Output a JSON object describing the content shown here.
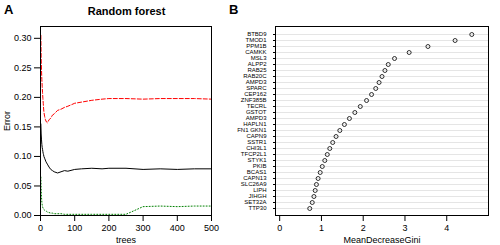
{
  "chart_data": [
    {
      "type": "line",
      "annotation": "A",
      "title": "Random forest",
      "xlabel": "trees",
      "ylabel": "Error",
      "x": [
        1,
        2,
        3,
        4,
        5,
        6,
        7,
        8,
        9,
        10,
        12,
        14,
        16,
        18,
        20,
        25,
        30,
        35,
        40,
        50,
        60,
        70,
        80,
        100,
        120,
        150,
        180,
        200,
        250,
        300,
        350,
        400,
        450,
        500
      ],
      "series": [
        {
          "color": "red",
          "line_style": "dashed",
          "values": [
            0.305,
            0.265,
            0.245,
            0.23,
            0.218,
            0.208,
            0.198,
            0.19,
            0.182,
            0.175,
            0.168,
            0.163,
            0.16,
            0.158,
            0.157,
            0.162,
            0.165,
            0.17,
            0.172,
            0.178,
            0.18,
            0.183,
            0.185,
            0.19,
            0.192,
            0.195,
            0.197,
            0.198,
            0.198,
            0.197,
            0.198,
            0.198,
            0.198,
            0.197
          ]
        },
        {
          "color": "black",
          "line_style": "solid",
          "values": [
            0.155,
            0.138,
            0.128,
            0.12,
            0.115,
            0.112,
            0.108,
            0.105,
            0.103,
            0.1,
            0.097,
            0.094,
            0.091,
            0.089,
            0.087,
            0.082,
            0.078,
            0.076,
            0.074,
            0.072,
            0.074,
            0.076,
            0.075,
            0.078,
            0.079,
            0.08,
            0.079,
            0.08,
            0.08,
            0.078,
            0.079,
            0.078,
            0.079,
            0.079
          ]
        },
        {
          "color": "green",
          "line_style": "dotted",
          "values": [
            0.065,
            0.045,
            0.03,
            0.022,
            0.018,
            0.015,
            0.013,
            0.012,
            0.011,
            0.01,
            0.009,
            0.008,
            0.007,
            0.007,
            0.006,
            0.005,
            0.004,
            0.004,
            0.003,
            0.003,
            0.003,
            0.002,
            0.002,
            0.002,
            0.002,
            0.002,
            0.002,
            0.002,
            0.002,
            0.015,
            0.016,
            0.015,
            0.016,
            0.016
          ]
        }
      ],
      "xlim": [
        0,
        500
      ],
      "xticks": [
        0,
        100,
        200,
        300,
        400,
        500
      ],
      "ylim": [
        0,
        0.32
      ],
      "yticks": [
        {
          "value": 0,
          "label": "0.00"
        },
        0.05,
        {
          "value": 0.1,
          "label": "0.10"
        },
        0.15,
        {
          "value": 0.2,
          "label": "0.20"
        },
        0.25,
        {
          "value": 0.3,
          "label": "0.30"
        }
      ],
      "grid": false
    },
    {
      "type": "scatter",
      "annotation": "B",
      "xlabel": "MeanDecreaseGini",
      "categories": [
        "TTP30",
        "SET32A",
        "JIHGH",
        "LIPH",
        "SLC26A9",
        "CAPN13",
        "BCAS1",
        "PKIB",
        "STYK1",
        "TFCP2L1",
        "CHI3L1",
        "SSTR1",
        "CAPN9",
        "FN1 GKN1",
        "HAPLN1",
        "AMPD3",
        "GSTOT",
        "TECRL",
        "ZNF385B",
        "CEP162",
        "SPARC",
        "AMPD3",
        "RAB20C",
        "RAB25",
        "ALPP2",
        "MSL3",
        "CAMKK",
        "PPM1B",
        "TMOD1",
        "BTBD9"
      ],
      "values": [
        0.72,
        0.78,
        0.82,
        0.85,
        0.88,
        0.92,
        0.97,
        1.02,
        1.08,
        1.14,
        1.2,
        1.27,
        1.35,
        1.44,
        1.55,
        1.67,
        1.8,
        1.93,
        2.08,
        2.2,
        2.3,
        2.38,
        2.45,
        2.52,
        2.6,
        2.75,
        3.1,
        3.55,
        4.2,
        4.6
      ],
      "color": "black",
      "marker": "circle",
      "xlim": [
        -0.1,
        5.0
      ],
      "xticks": [
        0,
        1,
        2,
        3,
        4
      ],
      "grid": true
    }
  ]
}
